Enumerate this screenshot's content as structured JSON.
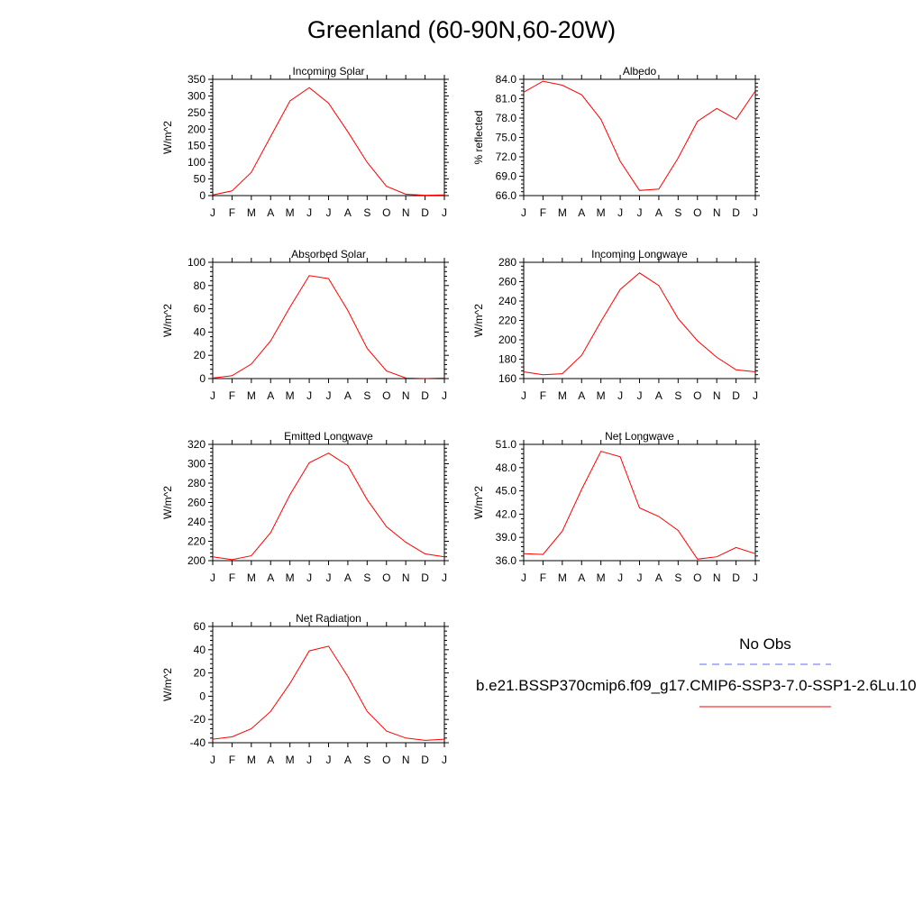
{
  "title": "Greenland (60-90N,60-20W)",
  "colors": {
    "model": "#ff0000",
    "obs": "#6666ff",
    "axis": "#000000"
  },
  "legend": {
    "obs_label": "No Obs",
    "model_label": "b.e21.BSSP370cmip6.f09_g17.CMIP6-SSP3-7.0-SSP1-2.6Lu.10"
  },
  "chart_data": [
    {
      "type": "line",
      "title": "Incoming Solar",
      "ylabel": "W/m^2",
      "x": [
        "J",
        "F",
        "M",
        "A",
        "M",
        "J",
        "J",
        "A",
        "S",
        "O",
        "N",
        "D",
        "J"
      ],
      "ylim": [
        0,
        350
      ],
      "yticks": [
        "0",
        "50",
        "100",
        "150",
        "200",
        "250",
        "300",
        "350"
      ],
      "series": [
        {
          "values": [
            2,
            14,
            70,
            178,
            285,
            325,
            278,
            192,
            100,
            28,
            4,
            1,
            2
          ]
        }
      ]
    },
    {
      "type": "line",
      "title": "Albedo",
      "ylabel": "% reflected",
      "x": [
        "J",
        "F",
        "M",
        "A",
        "M",
        "J",
        "J",
        "A",
        "S",
        "O",
        "N",
        "D",
        "J"
      ],
      "ylim": [
        66.0,
        84.0
      ],
      "yticks": [
        "66.0",
        "69.0",
        "72.0",
        "75.0",
        "78.0",
        "81.0",
        "84.0"
      ],
      "series": [
        {
          "values": [
            82.0,
            83.7,
            83.1,
            81.6,
            77.8,
            71.3,
            66.8,
            67.0,
            71.8,
            77.5,
            79.5,
            77.8,
            82.2
          ]
        }
      ]
    },
    {
      "type": "line",
      "title": "Absorbed Solar",
      "ylabel": "W/m^2",
      "x": [
        "J",
        "F",
        "M",
        "A",
        "M",
        "J",
        "J",
        "A",
        "S",
        "O",
        "N",
        "D",
        "J"
      ],
      "ylim": [
        0,
        100
      ],
      "yticks": [
        "0",
        "20",
        "40",
        "60",
        "80",
        "100"
      ],
      "series": [
        {
          "values": [
            0.5,
            2.5,
            12.5,
            32.5,
            61.5,
            88.5,
            86.0,
            58.5,
            26.0,
            6.5,
            0.5,
            0.1,
            0.5
          ]
        }
      ]
    },
    {
      "type": "line",
      "title": "Incoming Longwave",
      "ylabel": "W/m^2",
      "x": [
        "J",
        "F",
        "M",
        "A",
        "M",
        "J",
        "J",
        "A",
        "S",
        "O",
        "N",
        "D",
        "J"
      ],
      "ylim": [
        160,
        280
      ],
      "yticks": [
        "160",
        "180",
        "200",
        "220",
        "240",
        "260",
        "280"
      ],
      "series": [
        {
          "values": [
            167,
            164,
            165,
            184,
            219,
            252,
            269,
            256,
            222,
            199,
            182,
            169,
            167
          ]
        }
      ]
    },
    {
      "type": "line",
      "title": "Emitted Longwave",
      "ylabel": "W/m^2",
      "x": [
        "J",
        "F",
        "M",
        "A",
        "M",
        "J",
        "J",
        "A",
        "S",
        "O",
        "N",
        "D",
        "J"
      ],
      "ylim": [
        200,
        320
      ],
      "yticks": [
        "200",
        "220",
        "240",
        "260",
        "280",
        "300",
        "320"
      ],
      "series": [
        {
          "values": [
            204,
            201,
            205,
            229,
            268,
            301,
            311,
            298,
            263,
            235,
            219,
            207,
            204
          ]
        }
      ]
    },
    {
      "type": "line",
      "title": "Net Longwave",
      "ylabel": "W/m^2",
      "x": [
        "J",
        "F",
        "M",
        "A",
        "M",
        "J",
        "J",
        "A",
        "S",
        "O",
        "N",
        "D",
        "J"
      ],
      "ylim": [
        36.0,
        51.0
      ],
      "yticks": [
        "36.0",
        "39.0",
        "42.0",
        "45.0",
        "48.0",
        "51.0"
      ],
      "series": [
        {
          "values": [
            36.9,
            36.8,
            39.8,
            45.2,
            50.1,
            49.4,
            42.8,
            41.7,
            39.9,
            36.2,
            36.5,
            37.7,
            36.9
          ]
        }
      ]
    },
    {
      "type": "line",
      "title": "Net Radiation",
      "ylabel": "W/m^2",
      "x": [
        "J",
        "F",
        "M",
        "A",
        "M",
        "J",
        "J",
        "A",
        "S",
        "O",
        "N",
        "D",
        "J"
      ],
      "ylim": [
        -40,
        60
      ],
      "yticks": [
        "-40",
        "-20",
        "0",
        "20",
        "40",
        "60"
      ],
      "series": [
        {
          "values": [
            -37,
            -35,
            -28,
            -13,
            11,
            39,
            43,
            17,
            -13,
            -30,
            -36,
            -38,
            -37
          ]
        }
      ]
    }
  ]
}
